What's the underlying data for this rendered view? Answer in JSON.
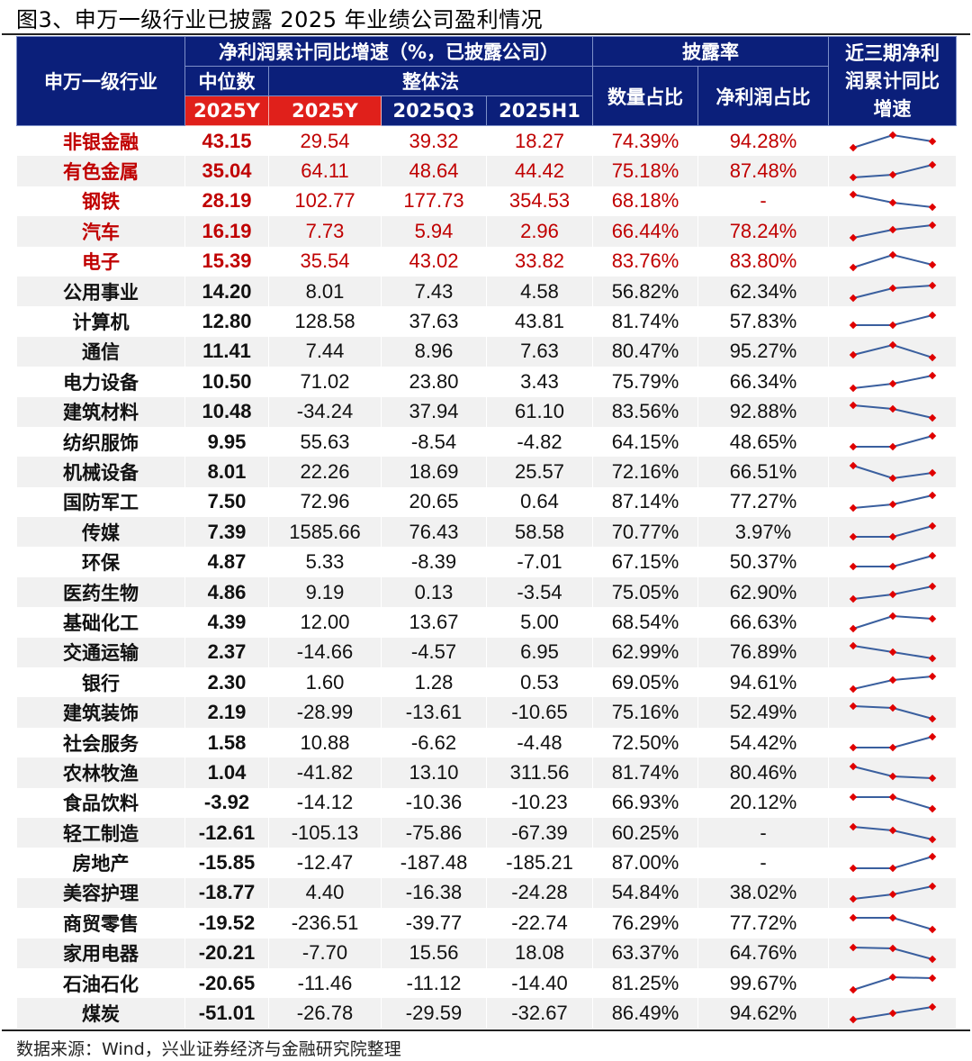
{
  "title": "图3、申万一级行业已披露 2025 年业绩公司盈利情况",
  "header": {
    "industry": "申万一级行业",
    "growth_group": "净利润累计同比增速（%，已披露公司）",
    "median": "中位数",
    "overall": "整体法",
    "disclosure_group": "披露率",
    "count_ratio": "数量占比",
    "profit_ratio": "净利润占比",
    "sparkline": "近三期净利润累计同比增速",
    "periods": [
      "2025Y",
      "2025Y",
      "2025Q3",
      "2025H1"
    ]
  },
  "colors": {
    "header_bg": "#0b1f7a",
    "header_red": "#e0201b",
    "highlight_text": "#c00000",
    "spark_line": "#3a5f9e",
    "spark_marker": "#e00000",
    "stripe": "#f1f1f1"
  },
  "rows": [
    {
      "name": "非银金融",
      "median": "43.15",
      "y": "29.54",
      "q3": "39.32",
      "h1": "18.27",
      "count": "74.39%",
      "profit": "94.28%",
      "hl": true,
      "spark": [
        0.85,
        0.15,
        0.5
      ]
    },
    {
      "name": "有色金属",
      "median": "35.04",
      "y": "64.11",
      "q3": "48.64",
      "h1": "44.42",
      "count": "75.18%",
      "profit": "87.48%",
      "hl": true,
      "spark": [
        0.85,
        0.7,
        0.15
      ]
    },
    {
      "name": "钢铁",
      "median": "28.19",
      "y": "102.77",
      "q3": "177.73",
      "h1": "354.53",
      "count": "68.18%",
      "profit": "-",
      "hl": true,
      "spark": [
        0.15,
        0.6,
        0.85
      ]
    },
    {
      "name": "汽车",
      "median": "16.19",
      "y": "7.73",
      "q3": "5.94",
      "h1": "2.96",
      "count": "66.44%",
      "profit": "78.24%",
      "hl": true,
      "spark": [
        0.85,
        0.4,
        0.15
      ]
    },
    {
      "name": "电子",
      "median": "15.39",
      "y": "35.54",
      "q3": "43.02",
      "h1": "33.82",
      "count": "83.76%",
      "profit": "83.80%",
      "hl": true,
      "spark": [
        0.85,
        0.15,
        0.7
      ]
    },
    {
      "name": "公用事业",
      "median": "14.20",
      "y": "8.01",
      "q3": "7.43",
      "h1": "4.58",
      "count": "56.82%",
      "profit": "62.34%",
      "hl": false,
      "spark": [
        0.85,
        0.3,
        0.15
      ]
    },
    {
      "name": "计算机",
      "median": "12.80",
      "y": "128.58",
      "q3": "37.63",
      "h1": "43.81",
      "count": "81.74%",
      "profit": "57.83%",
      "hl": false,
      "spark": [
        0.7,
        0.7,
        0.15
      ]
    },
    {
      "name": "通信",
      "median": "11.41",
      "y": "7.44",
      "q3": "8.96",
      "h1": "7.63",
      "count": "80.47%",
      "profit": "95.27%",
      "hl": false,
      "spark": [
        0.7,
        0.15,
        0.85
      ]
    },
    {
      "name": "电力设备",
      "median": "10.50",
      "y": "71.02",
      "q3": "23.80",
      "h1": "3.43",
      "count": "75.79%",
      "profit": "66.34%",
      "hl": false,
      "spark": [
        0.85,
        0.6,
        0.15
      ]
    },
    {
      "name": "建筑材料",
      "median": "10.48",
      "y": "-34.24",
      "q3": "37.94",
      "h1": "61.10",
      "count": "83.56%",
      "profit": "92.88%",
      "hl": false,
      "spark": [
        0.15,
        0.35,
        0.85
      ]
    },
    {
      "name": "纺织服饰",
      "median": "9.95",
      "y": "55.63",
      "q3": "-8.54",
      "h1": "-4.82",
      "count": "64.15%",
      "profit": "48.65%",
      "hl": false,
      "spark": [
        0.75,
        0.75,
        0.15
      ]
    },
    {
      "name": "机械设备",
      "median": "8.01",
      "y": "22.26",
      "q3": "18.69",
      "h1": "25.57",
      "count": "72.16%",
      "profit": "66.51%",
      "hl": false,
      "spark": [
        0.15,
        0.85,
        0.55
      ]
    },
    {
      "name": "国防军工",
      "median": "7.50",
      "y": "72.96",
      "q3": "20.65",
      "h1": "0.64",
      "count": "87.14%",
      "profit": "77.27%",
      "hl": false,
      "spark": [
        0.85,
        0.65,
        0.15
      ]
    },
    {
      "name": "传媒",
      "median": "7.39",
      "y": "1585.66",
      "q3": "76.43",
      "h1": "58.58",
      "count": "70.77%",
      "profit": "3.97%",
      "hl": false,
      "spark": [
        0.75,
        0.75,
        0.15
      ]
    },
    {
      "name": "环保",
      "median": "4.87",
      "y": "5.33",
      "q3": "-8.39",
      "h1": "-7.01",
      "count": "67.15%",
      "profit": "50.37%",
      "hl": false,
      "spark": [
        0.75,
        0.75,
        0.15
      ]
    },
    {
      "name": "医药生物",
      "median": "4.86",
      "y": "9.19",
      "q3": "0.13",
      "h1": "-3.54",
      "count": "75.05%",
      "profit": "62.90%",
      "hl": false,
      "spark": [
        0.85,
        0.6,
        0.15
      ]
    },
    {
      "name": "基础化工",
      "median": "4.39",
      "y": "12.00",
      "q3": "13.67",
      "h1": "5.00",
      "count": "68.54%",
      "profit": "66.63%",
      "hl": false,
      "spark": [
        0.85,
        0.15,
        0.3
      ]
    },
    {
      "name": "交通运输",
      "median": "2.37",
      "y": "-14.66",
      "q3": "-4.57",
      "h1": "6.95",
      "count": "62.99%",
      "profit": "76.89%",
      "hl": false,
      "spark": [
        0.15,
        0.5,
        0.85
      ]
    },
    {
      "name": "银行",
      "median": "2.30",
      "y": "1.60",
      "q3": "1.28",
      "h1": "0.53",
      "count": "69.05%",
      "profit": "94.61%",
      "hl": false,
      "spark": [
        0.85,
        0.35,
        0.15
      ]
    },
    {
      "name": "建筑装饰",
      "median": "2.19",
      "y": "-28.99",
      "q3": "-13.61",
      "h1": "-10.65",
      "count": "75.16%",
      "profit": "52.49%",
      "hl": false,
      "spark": [
        0.15,
        0.25,
        0.85
      ]
    },
    {
      "name": "社会服务",
      "median": "1.58",
      "y": "10.88",
      "q3": "-6.62",
      "h1": "-4.48",
      "count": "72.50%",
      "profit": "54.42%",
      "hl": false,
      "spark": [
        0.75,
        0.75,
        0.15
      ]
    },
    {
      "name": "农林牧渔",
      "median": "1.04",
      "y": "-41.82",
      "q3": "13.10",
      "h1": "311.56",
      "count": "81.74%",
      "profit": "80.46%",
      "hl": false,
      "spark": [
        0.15,
        0.7,
        0.8
      ]
    },
    {
      "name": "食品饮料",
      "median": "-3.92",
      "y": "-14.12",
      "q3": "-10.36",
      "h1": "-10.23",
      "count": "66.93%",
      "profit": "20.12%",
      "hl": false,
      "spark": [
        0.2,
        0.2,
        0.85
      ]
    },
    {
      "name": "轻工制造",
      "median": "-12.61",
      "y": "-105.13",
      "q3": "-75.86",
      "h1": "-67.39",
      "count": "60.25%",
      "profit": "-",
      "hl": false,
      "spark": [
        0.15,
        0.35,
        0.85
      ]
    },
    {
      "name": "房地产",
      "median": "-15.85",
      "y": "-12.47",
      "q3": "-187.48",
      "h1": "-185.21",
      "count": "87.00%",
      "profit": "-",
      "hl": false,
      "spark": [
        0.8,
        0.8,
        0.15
      ]
    },
    {
      "name": "美容护理",
      "median": "-18.77",
      "y": "4.40",
      "q3": "-16.38",
      "h1": "-24.28",
      "count": "54.84%",
      "profit": "38.02%",
      "hl": false,
      "spark": [
        0.85,
        0.6,
        0.15
      ]
    },
    {
      "name": "商贸零售",
      "median": "-19.52",
      "y": "-236.51",
      "q3": "-39.77",
      "h1": "-22.74",
      "count": "76.29%",
      "profit": "77.72%",
      "hl": false,
      "spark": [
        0.2,
        0.2,
        0.85
      ]
    },
    {
      "name": "家用电器",
      "median": "-20.21",
      "y": "-7.70",
      "q3": "15.56",
      "h1": "18.08",
      "count": "63.37%",
      "profit": "64.76%",
      "hl": false,
      "spark": [
        0.2,
        0.25,
        0.85
      ]
    },
    {
      "name": "石油石化",
      "median": "-20.65",
      "y": "-11.46",
      "q3": "-11.12",
      "h1": "-14.40",
      "count": "81.25%",
      "profit": "99.67%",
      "hl": false,
      "spark": [
        0.85,
        0.15,
        0.2
      ]
    },
    {
      "name": "煤炭",
      "median": "-51.01",
      "y": "-26.78",
      "q3": "-29.59",
      "h1": "-32.67",
      "count": "86.49%",
      "profit": "94.62%",
      "hl": false,
      "spark": [
        0.85,
        0.5,
        0.15
      ]
    }
  ],
  "source": "数据来源：Wind，兴业证券经济与金融研究院整理"
}
